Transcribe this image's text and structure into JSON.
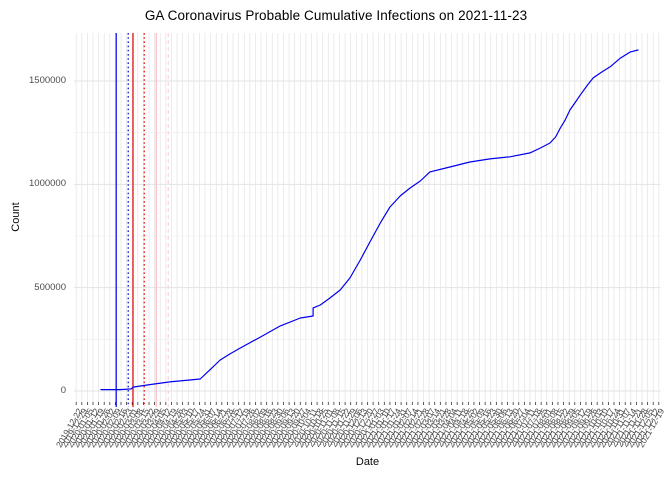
{
  "page": {
    "title": "GA Coronavirus Probable Cumulative Infections on 2021-11-23"
  },
  "chart_data": {
    "type": "line",
    "title": "GA Coronavirus Probable Cumulative Infections on 2021-11-23",
    "xlabel": "Date",
    "ylabel": "Count",
    "grid": "on",
    "legend": "none",
    "x_domain": [
      "2020-01-22",
      "2021-11-23"
    ],
    "ylim": [
      0,
      1650000
    ],
    "y_major_ticks": [
      {
        "value": 0,
        "label": "0"
      },
      {
        "value": 500000,
        "label": "500000"
      },
      {
        "value": 1000000,
        "label": "1000000"
      },
      {
        "value": 1500000,
        "label": "1500000"
      }
    ],
    "y_minor_ticks": [
      250000,
      750000,
      1250000
    ],
    "x_axis": {
      "first_tick": "2019-12-22",
      "tick_count": 105,
      "interval_days": 7,
      "label_format": "YYYY-MM-DD",
      "label_angle_deg": 60
    },
    "colors": {
      "line": "#0000EE",
      "grid_major": "#e3e3e3",
      "grid_minor": "#f0f0f0",
      "axis_text": "#4d4d4d",
      "tick_mark": "#333333"
    },
    "series": [
      {
        "name": "probable-cumulative-infections",
        "color": "#0000EE",
        "points": [
          [
            "2020-01-22",
            7000
          ],
          [
            "2020-02-15",
            7000
          ],
          [
            "2020-02-29",
            10000
          ],
          [
            "2020-03-02",
            19000
          ],
          [
            "2020-03-23",
            31000
          ],
          [
            "2020-04-17",
            44000
          ],
          [
            "2020-05-12",
            53000
          ],
          [
            "2020-05-25",
            58000
          ],
          [
            "2020-06-06",
            102000
          ],
          [
            "2020-06-19",
            150000
          ],
          [
            "2020-07-01",
            179000
          ],
          [
            "2020-07-14",
            208000
          ],
          [
            "2020-08-08",
            261000
          ],
          [
            "2020-09-02",
            315000
          ],
          [
            "2020-09-27",
            353000
          ],
          [
            "2020-10-13",
            363000
          ],
          [
            "2020-10-13",
            402000
          ],
          [
            "2020-10-22",
            416000
          ],
          [
            "2020-11-03",
            450000
          ],
          [
            "2020-11-16",
            489000
          ],
          [
            "2020-11-28",
            547000
          ],
          [
            "2020-12-11",
            634000
          ],
          [
            "2020-12-23",
            721000
          ],
          [
            "2021-01-05",
            813000
          ],
          [
            "2021-01-17",
            890000
          ],
          [
            "2021-01-30",
            944000
          ],
          [
            "2021-02-11",
            982000
          ],
          [
            "2021-02-24",
            1016000
          ],
          [
            "2021-03-08",
            1060000
          ],
          [
            "2021-04-02",
            1084000
          ],
          [
            "2021-04-27",
            1108000
          ],
          [
            "2021-05-22",
            1123000
          ],
          [
            "2021-06-16",
            1133000
          ],
          [
            "2021-07-11",
            1152000
          ],
          [
            "2021-07-24",
            1176000
          ],
          [
            "2021-08-05",
            1200000
          ],
          [
            "2021-08-12",
            1229000
          ],
          [
            "2021-08-18",
            1273000
          ],
          [
            "2021-08-24",
            1312000
          ],
          [
            "2021-08-30",
            1360000
          ],
          [
            "2021-09-06",
            1399000
          ],
          [
            "2021-09-12",
            1433000
          ],
          [
            "2021-09-21",
            1481000
          ],
          [
            "2021-09-28",
            1515000
          ],
          [
            "2021-10-09",
            1544000
          ],
          [
            "2021-10-19",
            1568000
          ],
          [
            "2021-11-01",
            1611000
          ],
          [
            "2021-11-13",
            1640000
          ],
          [
            "2021-11-23",
            1650000
          ]
        ]
      }
    ],
    "vlines": [
      {
        "name": "vline-blue-solid",
        "date": "2020-02-10",
        "color": "#0000EE",
        "style": "solid"
      },
      {
        "name": "vline-blue-dotted",
        "date": "2020-02-25",
        "color": "#0000CD",
        "style": "dotted"
      },
      {
        "name": "vline-red-solid",
        "date": "2020-03-02",
        "color": "#EE0000",
        "style": "solid"
      },
      {
        "name": "vline-red-dotted",
        "date": "2020-03-16",
        "color": "#EE0000",
        "style": "dotted"
      },
      {
        "name": "vline-pink-solid",
        "date": "2020-03-31",
        "color": "#FFB6C1",
        "style": "solid"
      },
      {
        "name": "vline-pink-dashed",
        "date": "2020-04-15",
        "color": "#FFD0DA",
        "style": "dashed"
      }
    ]
  }
}
